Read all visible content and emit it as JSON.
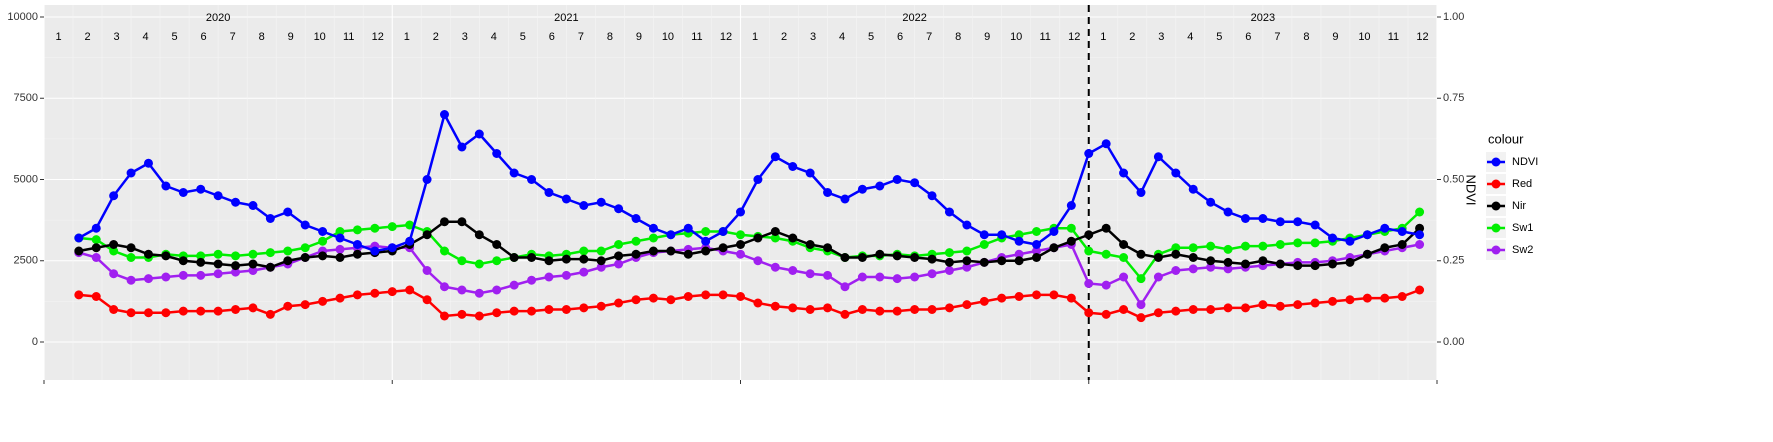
{
  "chart_data": {
    "type": "line",
    "years": [
      "2020",
      "2021",
      "2022",
      "2023"
    ],
    "months": [
      "1",
      "2",
      "3",
      "4",
      "5",
      "6",
      "7",
      "8",
      "9",
      "10",
      "11",
      "12"
    ],
    "y2_label": "NDVI",
    "legend_title": "colour",
    "legend": "right",
    "grid": true,
    "xlim": [
      2020,
      2024
    ],
    "xticks": [
      2020,
      2021,
      2022,
      2023,
      2024
    ],
    "vline": 2023,
    "ylim": [
      -1169,
      10369
    ],
    "yticks": [
      0,
      2500,
      5000,
      7500,
      10000
    ],
    "y2lim": [
      -0.1169,
      1.0369
    ],
    "y2ticks": [
      {
        "value": 0,
        "label": "0.00"
      },
      {
        "value": 0.25,
        "label": "0.25"
      },
      {
        "value": 0.5,
        "label": "0.50"
      },
      {
        "value": 0.75,
        "label": "0.75"
      },
      {
        "value": 1,
        "label": "1.00"
      }
    ],
    "x": [
      2020.1,
      2020.15,
      2020.2,
      2020.25,
      2020.3,
      2020.35,
      2020.4,
      2020.45,
      2020.5,
      2020.55,
      2020.6,
      2020.65,
      2020.7,
      2020.75,
      2020.8,
      2020.85,
      2020.9,
      2020.95,
      2021.0,
      2021.05,
      2021.1,
      2021.15,
      2021.2,
      2021.25,
      2021.3,
      2021.35,
      2021.4,
      2021.45,
      2021.5,
      2021.55,
      2021.6,
      2021.65,
      2021.7,
      2021.75,
      2021.8,
      2021.85,
      2021.9,
      2021.95,
      2022.0,
      2022.05,
      2022.1,
      2022.15,
      2022.2,
      2022.25,
      2022.3,
      2022.35,
      2022.4,
      2022.45,
      2022.5,
      2022.55,
      2022.6,
      2022.65,
      2022.7,
      2022.75,
      2022.8,
      2022.85,
      2022.9,
      2022.95,
      2023.0,
      2023.05,
      2023.1,
      2023.15,
      2023.2,
      2023.25,
      2023.3,
      2023.35,
      2023.4,
      2023.45,
      2023.5,
      2023.55,
      2023.6,
      2023.65,
      2023.7,
      2023.75,
      2023.8,
      2023.85,
      2023.9,
      2023.95
    ],
    "series": [
      {
        "name": "NDVI",
        "color": "#0000ff",
        "axis": "y2",
        "values": [
          0.32,
          0.35,
          0.45,
          0.52,
          0.55,
          0.48,
          0.46,
          0.47,
          0.45,
          0.43,
          0.42,
          0.38,
          0.4,
          0.36,
          0.34,
          0.32,
          0.3,
          0.28,
          0.29,
          0.31,
          0.5,
          0.7,
          0.6,
          0.64,
          0.58,
          0.52,
          0.5,
          0.46,
          0.44,
          0.42,
          0.43,
          0.41,
          0.38,
          0.35,
          0.33,
          0.35,
          0.31,
          0.34,
          0.4,
          0.5,
          0.57,
          0.54,
          0.52,
          0.46,
          0.44,
          0.47,
          0.48,
          0.5,
          0.49,
          0.45,
          0.4,
          0.36,
          0.33,
          0.33,
          0.31,
          0.3,
          0.34,
          0.42,
          0.58,
          0.61,
          0.52,
          0.46,
          0.57,
          0.52,
          0.47,
          0.43,
          0.4,
          0.38,
          0.38,
          0.37,
          0.37,
          0.36,
          0.32,
          0.31,
          0.33,
          0.35,
          0.34,
          0.33
        ]
      },
      {
        "name": "Red",
        "color": "#ff0000",
        "values": [
          1450,
          1400,
          1000,
          900,
          900,
          900,
          950,
          950,
          950,
          1000,
          1050,
          850,
          1100,
          1150,
          1250,
          1350,
          1450,
          1500,
          1550,
          1600,
          1300,
          800,
          850,
          800,
          900,
          950,
          950,
          1000,
          1000,
          1050,
          1100,
          1200,
          1300,
          1350,
          1300,
          1400,
          1450,
          1450,
          1400,
          1200,
          1100,
          1050,
          1000,
          1050,
          850,
          1000,
          950,
          950,
          1000,
          1000,
          1050,
          1150,
          1250,
          1350,
          1400,
          1450,
          1450,
          1350,
          900,
          850,
          1000,
          750,
          900,
          950,
          1000,
          1000,
          1050,
          1050,
          1150,
          1100,
          1150,
          1200,
          1250,
          1300,
          1350,
          1350,
          1400,
          1600
        ]
      },
      {
        "name": "Nir",
        "color": "#000000",
        "values": [
          2800,
          2900,
          3000,
          2900,
          2700,
          2650,
          2500,
          2450,
          2400,
          2350,
          2400,
          2300,
          2500,
          2600,
          2650,
          2600,
          2700,
          2750,
          2800,
          3000,
          3300,
          3700,
          3700,
          3300,
          3000,
          2600,
          2600,
          2500,
          2550,
          2550,
          2500,
          2650,
          2700,
          2800,
          2800,
          2700,
          2800,
          2900,
          3000,
          3200,
          3400,
          3200,
          3000,
          2900,
          2600,
          2600,
          2700,
          2650,
          2600,
          2550,
          2450,
          2500,
          2450,
          2500,
          2500,
          2600,
          2900,
          3100,
          3300,
          3500,
          3000,
          2700,
          2600,
          2700,
          2600,
          2500,
          2450,
          2400,
          2500,
          2400,
          2350,
          2350,
          2400,
          2450,
          2700,
          2900,
          3000,
          3500
        ]
      },
      {
        "name": "Sw1",
        "color": "#00ee00",
        "values": [
          3200,
          3150,
          2800,
          2600,
          2600,
          2700,
          2650,
          2650,
          2700,
          2650,
          2700,
          2750,
          2800,
          2900,
          3100,
          3400,
          3450,
          3500,
          3550,
          3600,
          3400,
          2800,
          2500,
          2400,
          2500,
          2600,
          2700,
          2650,
          2700,
          2800,
          2800,
          3000,
          3100,
          3200,
          3300,
          3350,
          3400,
          3400,
          3300,
          3250,
          3200,
          3100,
          2900,
          2800,
          2600,
          2650,
          2650,
          2700,
          2650,
          2700,
          2750,
          2800,
          3000,
          3200,
          3300,
          3400,
          3500,
          3500,
          2800,
          2700,
          2600,
          1950,
          2700,
          2900,
          2900,
          2950,
          2850,
          2950,
          2950,
          3000,
          3050,
          3050,
          3100,
          3200,
          3300,
          3400,
          3500,
          4000
        ]
      },
      {
        "name": "Sw2",
        "color": "#a020f0",
        "values": [
          2750,
          2600,
          2100,
          1900,
          1950,
          2000,
          2050,
          2050,
          2100,
          2150,
          2200,
          2300,
          2400,
          2600,
          2800,
          2850,
          2900,
          2950,
          2900,
          2900,
          2200,
          1700,
          1600,
          1500,
          1600,
          1750,
          1900,
          2000,
          2050,
          2150,
          2300,
          2400,
          2600,
          2750,
          2800,
          2850,
          2900,
          2800,
          2700,
          2500,
          2300,
          2200,
          2100,
          2050,
          1700,
          2000,
          2000,
          1950,
          2000,
          2100,
          2200,
          2300,
          2450,
          2600,
          2700,
          2800,
          2900,
          3000,
          1800,
          1750,
          2000,
          1150,
          2000,
          2200,
          2250,
          2300,
          2250,
          2300,
          2350,
          2400,
          2450,
          2450,
          2500,
          2600,
          2700,
          2800,
          2900,
          3000
        ]
      }
    ]
  }
}
